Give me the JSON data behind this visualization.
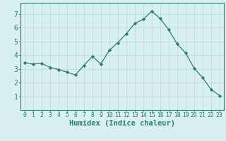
{
  "x": [
    0,
    1,
    2,
    3,
    4,
    5,
    6,
    7,
    8,
    9,
    10,
    11,
    12,
    13,
    14,
    15,
    16,
    17,
    18,
    19,
    20,
    21,
    22,
    23
  ],
  "y": [
    3.45,
    3.35,
    3.4,
    3.1,
    2.95,
    2.75,
    2.55,
    3.25,
    3.9,
    3.35,
    4.35,
    4.9,
    5.55,
    6.3,
    6.6,
    7.2,
    6.65,
    5.85,
    4.8,
    4.15,
    3.05,
    2.35,
    1.5,
    1.05
  ],
  "line_color": "#2d7d6e",
  "marker": "D",
  "marker_size": 2.2,
  "bg_color": "#d8f0f0",
  "grid_color": "#b8d8d8",
  "xlabel": "Humidex (Indice chaleur)",
  "xlabel_fontsize": 7.5,
  "tick_fontsize": 7,
  "xtick_fontsize": 5.8,
  "ylim": [
    0,
    7.8
  ],
  "xlim": [
    -0.5,
    23.5
  ],
  "yticks": [
    1,
    2,
    3,
    4,
    5,
    6,
    7
  ],
  "xticks": [
    0,
    1,
    2,
    3,
    4,
    5,
    6,
    7,
    8,
    9,
    10,
    11,
    12,
    13,
    14,
    15,
    16,
    17,
    18,
    19,
    20,
    21,
    22,
    23
  ],
  "spine_color": "#2d7d6e",
  "text_color": "#2d7d6e"
}
